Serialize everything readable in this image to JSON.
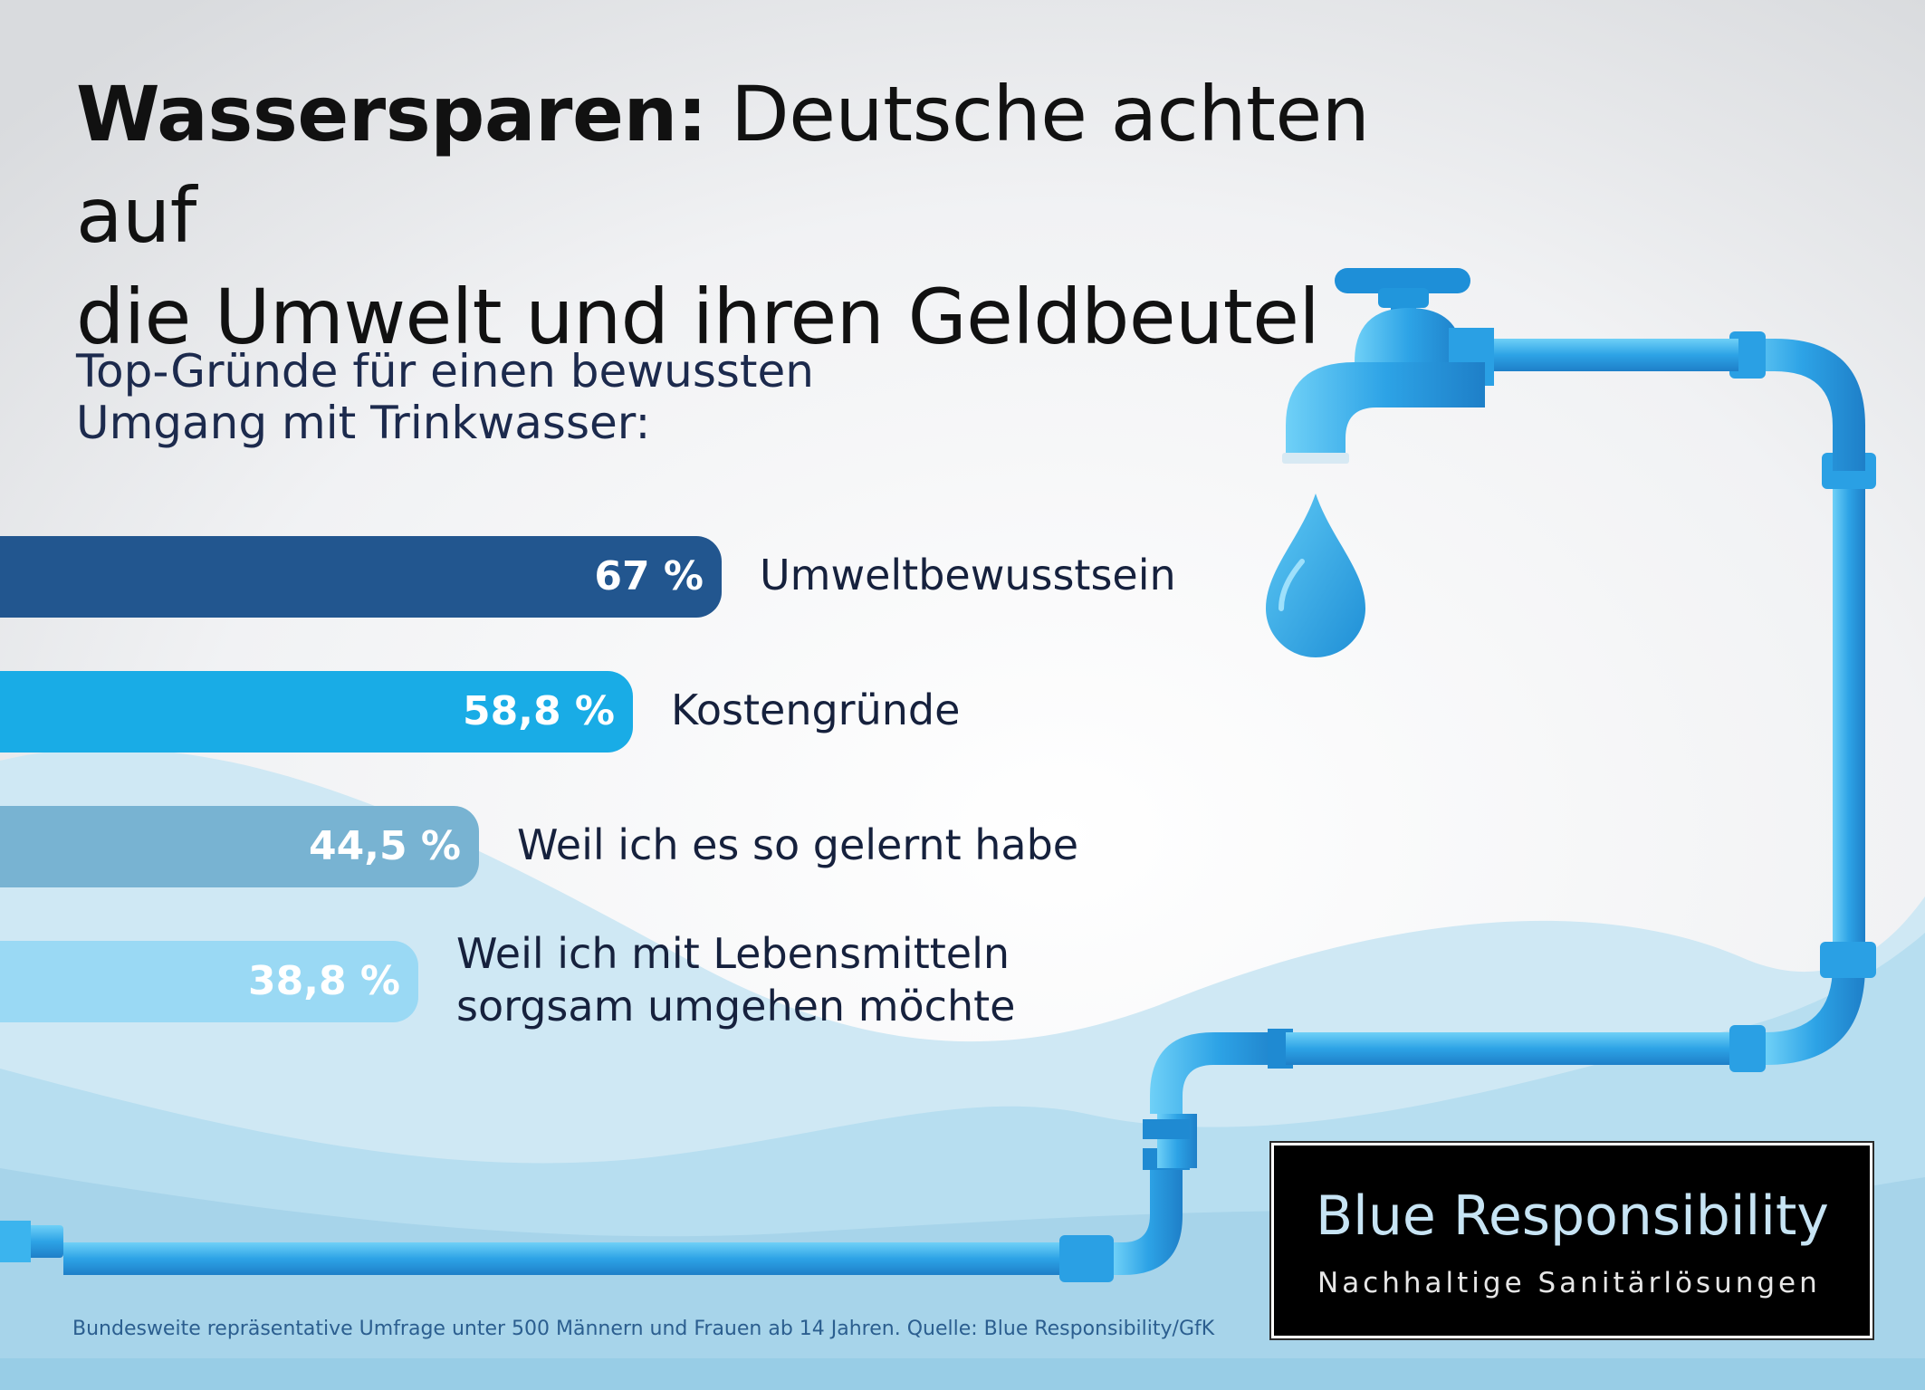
{
  "title": {
    "bold": "Wassersparen:",
    "rest_line1": "Deutsche achten auf",
    "line2": "die Umwelt und ihren Geldbeutel"
  },
  "subtitle": "Top-Gründe für einen bewussten\nUmgang mit Trinkwasser:",
  "chart_data": {
    "type": "bar",
    "orientation": "horizontal",
    "unit": "%",
    "categories": [
      "Umweltbewusstsein",
      "Kostengründe",
      "Weil ich es so gelernt habe",
      "Weil ich mit Lebensmitteln\nsorgsam umgehen möchte"
    ],
    "values": [
      67,
      58.8,
      44.5,
      38.8
    ],
    "value_labels": [
      "67 %",
      "58,8 %",
      "44,5 %",
      "38,8 %"
    ],
    "colors": [
      "#22568f",
      "#19ace6",
      "#78b3d2",
      "#9ad9f4"
    ],
    "grid": false,
    "legend": "none"
  },
  "footnote": "Bundesweite repräsentative Umfrage unter 500 Männern und Frauen ab 14 Jahren. Quelle: Blue Responsibility/GfK",
  "brand": {
    "name": "Blue Responsibility",
    "tagline": "Nachhaltige Sanitärlösungen"
  },
  "icons": [
    "water-tap-icon",
    "water-drop-icon",
    "pipe-icon"
  ],
  "colors": {
    "pipe": "#2b9be0",
    "pipe_light": "#5ec7f4",
    "wave_back": "#c9e6f3",
    "wave_front": "#a8d6ec"
  }
}
